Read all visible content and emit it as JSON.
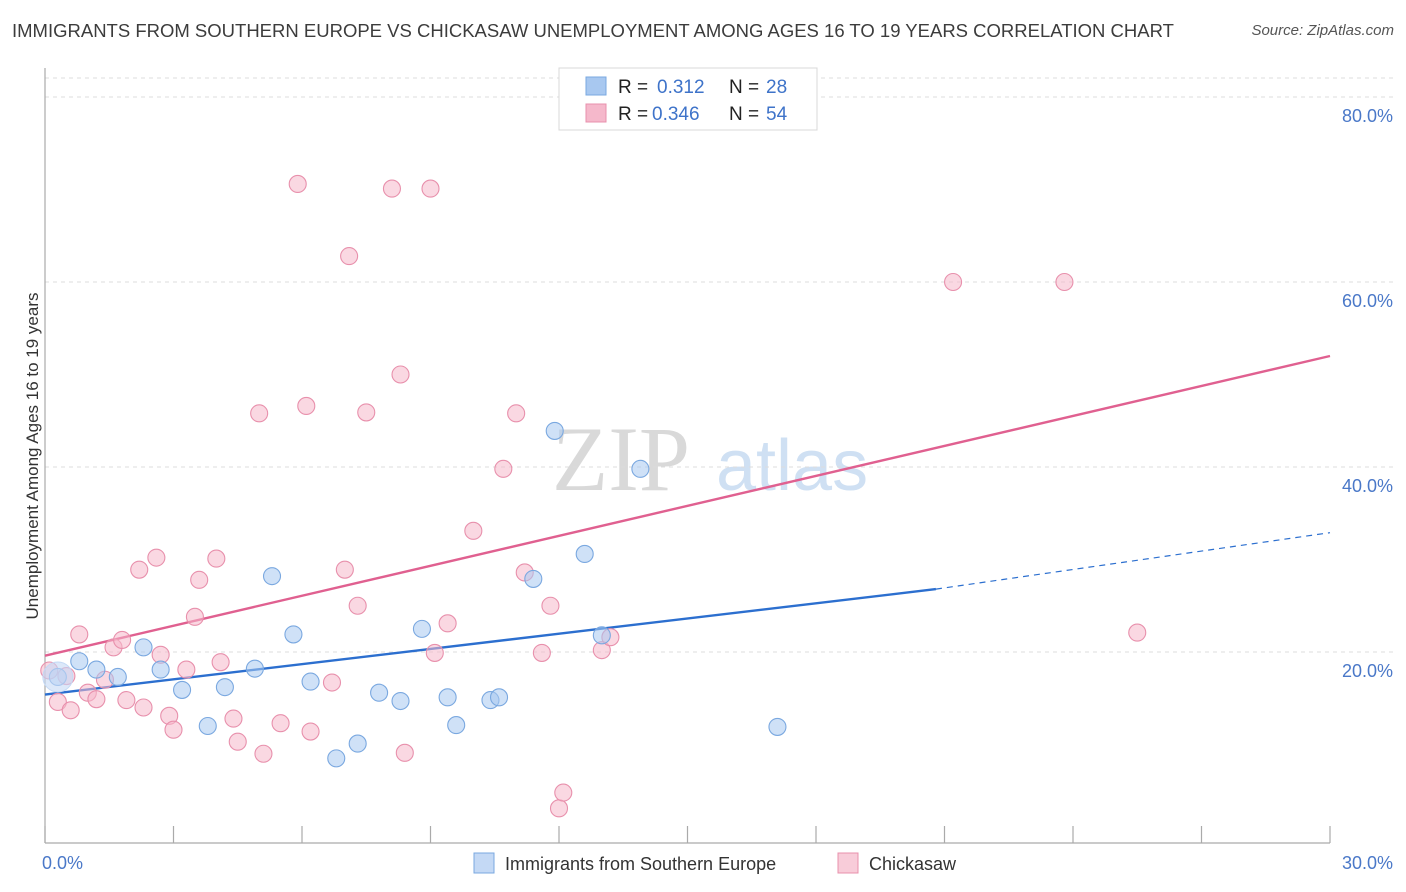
{
  "title": "IMMIGRANTS FROM SOUTHERN EUROPE VS CHICKASAW UNEMPLOYMENT AMONG AGES 16 TO 19 YEARS CORRELATION CHART",
  "source": "Source: ZipAtlas.com",
  "watermark": {
    "zip": "ZIP",
    "atlas": "atlas"
  },
  "legend": {
    "r_label": "R =",
    "n_label": "N =",
    "rows": [
      {
        "r": "0.312",
        "n": "28",
        "color": "#a8c8f0"
      },
      {
        "r": "0.346",
        "n": "54",
        "color": "#f5b8cb"
      }
    ]
  },
  "bottom_legend": [
    {
      "label": "Immigrants from Southern Europe",
      "color": "#a8c8f0"
    },
    {
      "label": "Chickasaw",
      "color": "#f5b8cb"
    }
  ],
  "chart_data": {
    "type": "scatter",
    "ylabel": "Unemployment Among Ages 16 to 19 years",
    "xlabel": "",
    "xlim": [
      0,
      30
    ],
    "ylim": [
      0,
      82
    ],
    "x_tick_labels": [
      {
        "x": 0,
        "label": "0.0%"
      },
      {
        "x": 30,
        "label": "30.0%"
      }
    ],
    "y_tick_labels": [
      {
        "y": 20,
        "label": "20.0%"
      },
      {
        "y": 40,
        "label": "40.0%"
      },
      {
        "y": 60,
        "label": "60.0%"
      },
      {
        "y": 80,
        "label": "80.0%"
      }
    ],
    "grid": "horizontal dashed",
    "series": [
      {
        "name": "Immigrants from Southern Europe",
        "color": "#a8c8f0",
        "stroke": "#7aa8e0",
        "line_color": "#2c6fcf",
        "trend": {
          "x0": 0,
          "y0": 15.4,
          "x1": 20.8,
          "y1": 26.8,
          "dashed_to_x": 30,
          "dashed_to_y": 32.9
        },
        "points": [
          [
            0.3,
            17.3
          ],
          [
            0.8,
            19.0
          ],
          [
            1.2,
            18.1
          ],
          [
            1.7,
            17.3
          ],
          [
            2.3,
            20.5
          ],
          [
            2.7,
            18.1
          ],
          [
            3.2,
            15.9
          ],
          [
            3.8,
            12.0
          ],
          [
            4.2,
            16.2
          ],
          [
            4.9,
            18.2
          ],
          [
            5.3,
            28.2
          ],
          [
            5.8,
            21.9
          ],
          [
            6.2,
            16.8
          ],
          [
            6.8,
            8.5
          ],
          [
            7.3,
            10.1
          ],
          [
            7.8,
            15.6
          ],
          [
            8.3,
            14.7
          ],
          [
            8.8,
            22.5
          ],
          [
            9.4,
            15.1
          ],
          [
            9.6,
            12.1
          ],
          [
            10.4,
            14.8
          ],
          [
            10.6,
            15.1
          ],
          [
            11.4,
            27.9
          ],
          [
            11.9,
            43.9
          ],
          [
            12.6,
            30.6
          ],
          [
            13.0,
            21.8
          ],
          [
            13.9,
            39.8
          ],
          [
            17.1,
            11.9
          ]
        ]
      },
      {
        "name": "Chickasaw",
        "color": "#f5b8cb",
        "stroke": "#e890ac",
        "line_color": "#e06090",
        "trend": {
          "x0": 0,
          "y0": 19.6,
          "x1": 30,
          "y1": 52.0
        },
        "points": [
          [
            0.1,
            18.0
          ],
          [
            0.3,
            14.6
          ],
          [
            0.5,
            17.4
          ],
          [
            0.6,
            13.7
          ],
          [
            0.8,
            21.9
          ],
          [
            1.0,
            15.6
          ],
          [
            1.2,
            14.9
          ],
          [
            1.4,
            17.0
          ],
          [
            1.6,
            20.5
          ],
          [
            1.8,
            21.3
          ],
          [
            1.9,
            14.8
          ],
          [
            2.2,
            28.9
          ],
          [
            2.3,
            14.0
          ],
          [
            2.6,
            30.2
          ],
          [
            2.7,
            19.7
          ],
          [
            2.9,
            13.1
          ],
          [
            3.0,
            11.6
          ],
          [
            3.3,
            18.1
          ],
          [
            3.5,
            23.8
          ],
          [
            3.6,
            27.8
          ],
          [
            4.0,
            30.1
          ],
          [
            4.1,
            18.9
          ],
          [
            4.4,
            12.8
          ],
          [
            4.5,
            10.3
          ],
          [
            5.0,
            45.8
          ],
          [
            5.1,
            9.0
          ],
          [
            5.5,
            12.3
          ],
          [
            5.9,
            70.6
          ],
          [
            6.1,
            46.6
          ],
          [
            6.2,
            11.4
          ],
          [
            6.7,
            16.7
          ],
          [
            7.0,
            28.9
          ],
          [
            7.1,
            62.8
          ],
          [
            7.3,
            25.0
          ],
          [
            7.5,
            45.9
          ],
          [
            8.1,
            70.1
          ],
          [
            8.3,
            50.0
          ],
          [
            8.4,
            9.1
          ],
          [
            9.0,
            70.1
          ],
          [
            9.1,
            19.9
          ],
          [
            9.4,
            23.1
          ],
          [
            10.0,
            33.1
          ],
          [
            10.7,
            39.8
          ],
          [
            11.0,
            45.8
          ],
          [
            11.2,
            28.6
          ],
          [
            11.6,
            19.9
          ],
          [
            11.8,
            25.0
          ],
          [
            12.0,
            3.1
          ],
          [
            12.1,
            4.8
          ],
          [
            13.0,
            20.2
          ],
          [
            13.2,
            21.6
          ],
          [
            21.2,
            60.0
          ],
          [
            23.8,
            60.0
          ],
          [
            25.5,
            22.1
          ]
        ]
      }
    ]
  }
}
